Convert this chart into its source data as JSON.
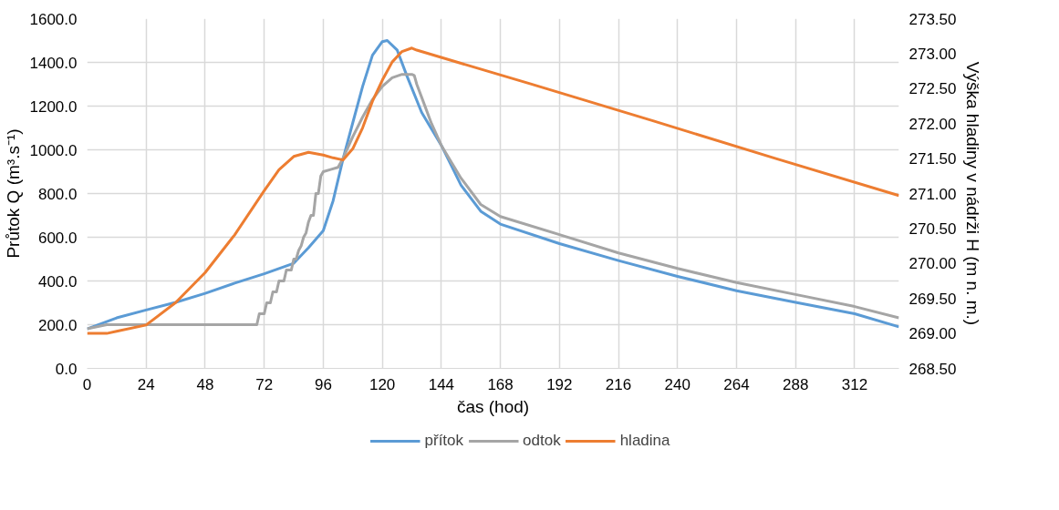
{
  "chart_data": {
    "type": "line",
    "xlabel": "čas (hod)",
    "ylabel": "Průtok Q (m³.s⁻¹)",
    "y2label": "Výška hladiny v nádrži H (m n. m.)",
    "xlim": [
      0,
      330
    ],
    "xticks": [
      0,
      24,
      48,
      72,
      96,
      120,
      144,
      168,
      192,
      216,
      240,
      264,
      288,
      312
    ],
    "ylim": [
      0,
      1600
    ],
    "yticks": [
      {
        "value": 0,
        "label": "0.0"
      },
      {
        "value": 200,
        "label": "200.0"
      },
      {
        "value": 400,
        "label": "400.0"
      },
      {
        "value": 600,
        "label": "600.0"
      },
      {
        "value": 800,
        "label": "800.0"
      },
      {
        "value": 1000,
        "label": "1000.0"
      },
      {
        "value": 1200,
        "label": "1200.0"
      },
      {
        "value": 1400,
        "label": "1400.0"
      },
      {
        "value": 1600,
        "label": "1600.0"
      }
    ],
    "y2lim": [
      268.5,
      273.5
    ],
    "y2ticks": [
      {
        "value": 268.5,
        "label": "268.50"
      },
      {
        "value": 269.0,
        "label": "269.00"
      },
      {
        "value": 269.5,
        "label": "269.50"
      },
      {
        "value": 270.0,
        "label": "270.00"
      },
      {
        "value": 270.5,
        "label": "270.50"
      },
      {
        "value": 271.0,
        "label": "271.00"
      },
      {
        "value": 271.5,
        "label": "271.50"
      },
      {
        "value": 272.0,
        "label": "272.00"
      },
      {
        "value": 272.5,
        "label": "272.50"
      },
      {
        "value": 273.0,
        "label": "273.00"
      },
      {
        "value": 273.5,
        "label": "273.50"
      }
    ],
    "grid": true,
    "legend": "bottom",
    "marker": "none",
    "line_style": "solid",
    "series": [
      {
        "name": "přítok",
        "color": "#5b9bd5",
        "x": [
          0,
          12,
          24,
          36,
          48,
          60,
          72,
          84,
          90,
          96,
          100,
          104,
          108,
          112,
          116,
          120,
          122,
          126,
          130,
          136,
          144,
          152,
          160,
          168,
          192,
          216,
          240,
          264,
          288,
          312,
          330
        ],
        "values": [
          181,
          231,
          267,
          302,
          343,
          390,
          433,
          481,
          552,
          630,
          767,
          957,
          1124,
          1290,
          1433,
          1495,
          1500,
          1457,
          1338,
          1171,
          1020,
          838,
          719,
          660,
          571,
          493,
          421,
          355,
          302,
          250,
          190
        ]
      },
      {
        "name": "odtok",
        "color": "#a5a5a5",
        "x": [
          0,
          8,
          69,
          70,
          72,
          73,
          74.5,
          75.5,
          77,
          78,
          80,
          81,
          83,
          84,
          85,
          86,
          87,
          88,
          89,
          90,
          91,
          92,
          93,
          94,
          95,
          96,
          99,
          102,
          104,
          108,
          112,
          116,
          120,
          124,
          128,
          132,
          133,
          134,
          136,
          140,
          144,
          152,
          160,
          168,
          192,
          216,
          240,
          264,
          288,
          312,
          330
        ],
        "values": [
          181,
          200,
          200,
          250,
          250,
          300,
          300,
          350,
          350,
          400,
          400,
          450,
          450,
          500,
          500,
          540,
          560,
          600,
          620,
          670,
          700,
          700,
          800,
          800,
          880,
          900,
          910,
          920,
          960,
          1060,
          1150,
          1230,
          1290,
          1330,
          1345,
          1345,
          1340,
          1300,
          1240,
          1120,
          1020,
          870,
          750,
          695,
          612,
          528,
          457,
          393,
          338,
          283,
          231
        ]
      },
      {
        "name": "hladina",
        "color": "#ed7d31",
        "axis": "y2",
        "x": [
          0,
          8,
          12,
          24,
          36,
          48,
          60,
          72,
          78,
          84,
          90,
          96,
          100,
          104,
          108,
          112,
          116,
          120,
          124,
          128,
          132,
          134,
          180,
          230,
          280,
          330
        ],
        "values": [
          269.0,
          269.0,
          269.03,
          269.12,
          269.44,
          269.87,
          270.41,
          271.04,
          271.34,
          271.53,
          271.59,
          271.55,
          271.51,
          271.48,
          271.64,
          271.94,
          272.32,
          272.62,
          272.88,
          273.03,
          273.08,
          273.05,
          272.57,
          272.04,
          271.5,
          270.97
        ]
      }
    ]
  }
}
